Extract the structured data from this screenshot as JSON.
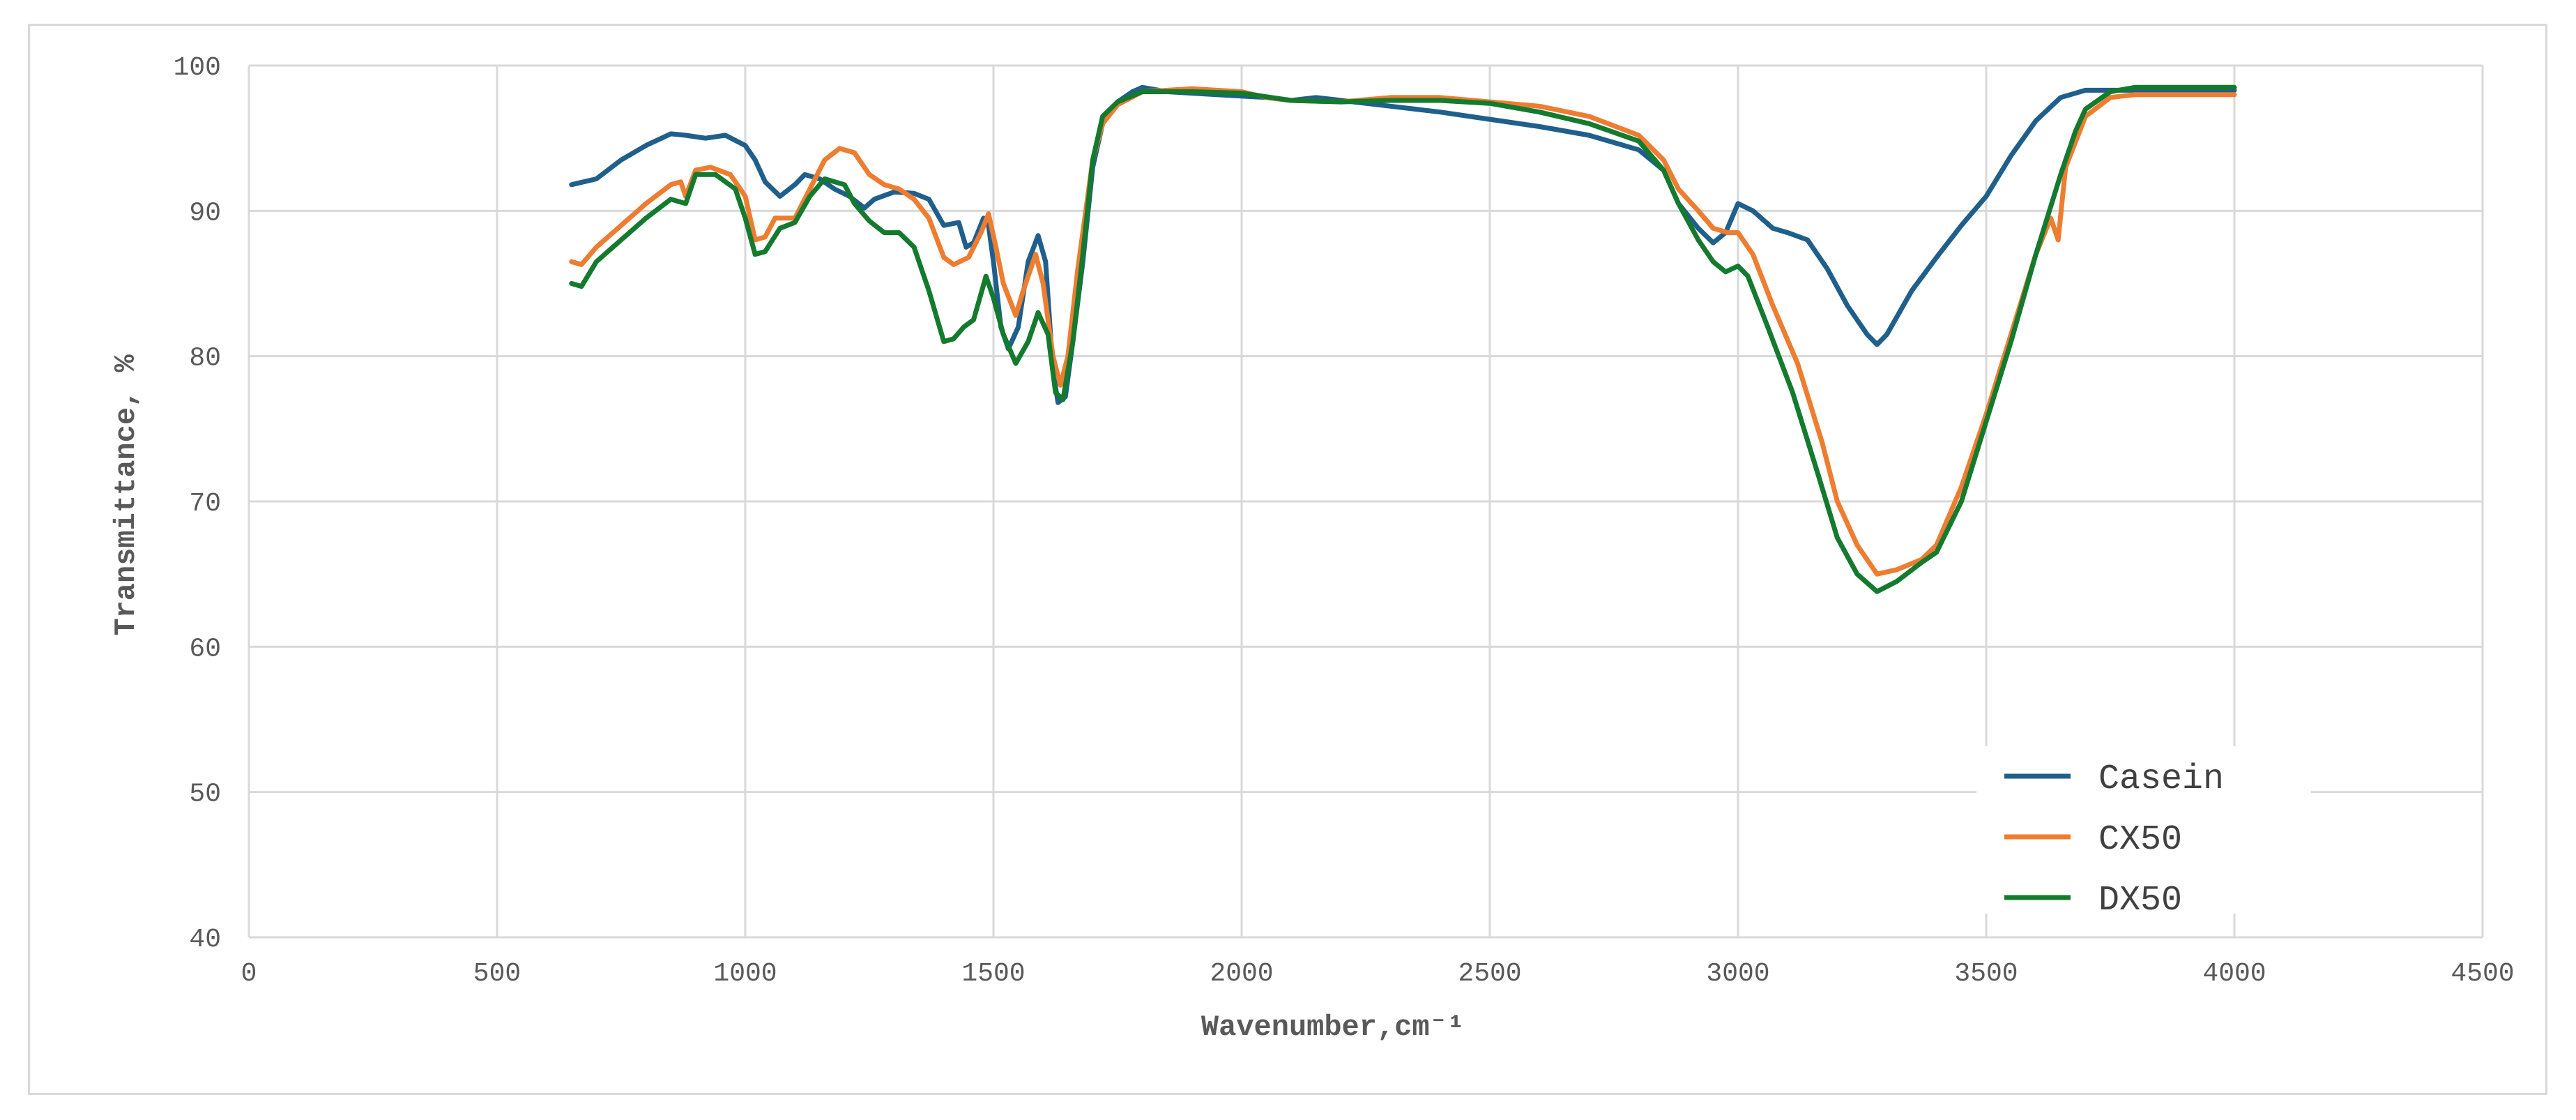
{
  "chart_data": {
    "type": "line",
    "title": "",
    "xlabel": "Wavenumber,cm⁻¹",
    "ylabel": "Transmittance, %",
    "xlim": [
      0,
      4500
    ],
    "ylim": [
      40,
      100
    ],
    "xticks": [
      0,
      500,
      1000,
      1500,
      2000,
      2500,
      3000,
      3500,
      4000,
      4500
    ],
    "yticks": [
      40,
      50,
      60,
      70,
      80,
      90,
      100
    ],
    "grid": true,
    "legend_position": "bottom-right",
    "series": [
      {
        "name": "Casein",
        "color": "#1f5f8b",
        "points": [
          [
            650,
            91.8
          ],
          [
            700,
            92.2
          ],
          [
            750,
            93.5
          ],
          [
            800,
            94.5
          ],
          [
            850,
            95.3
          ],
          [
            880,
            95.2
          ],
          [
            920,
            95.0
          ],
          [
            960,
            95.2
          ],
          [
            1000,
            94.5
          ],
          [
            1020,
            93.5
          ],
          [
            1040,
            92.0
          ],
          [
            1070,
            91.0
          ],
          [
            1100,
            91.8
          ],
          [
            1120,
            92.5
          ],
          [
            1150,
            92.2
          ],
          [
            1180,
            91.5
          ],
          [
            1210,
            91.0
          ],
          [
            1240,
            90.2
          ],
          [
            1260,
            90.8
          ],
          [
            1300,
            91.3
          ],
          [
            1340,
            91.2
          ],
          [
            1370,
            90.8
          ],
          [
            1400,
            89.0
          ],
          [
            1430,
            89.2
          ],
          [
            1445,
            87.5
          ],
          [
            1460,
            87.8
          ],
          [
            1480,
            89.5
          ],
          [
            1490,
            89.0
          ],
          [
            1500,
            86.5
          ],
          [
            1515,
            82.0
          ],
          [
            1530,
            80.5
          ],
          [
            1550,
            82.0
          ],
          [
            1570,
            86.5
          ],
          [
            1590,
            88.3
          ],
          [
            1605,
            86.5
          ],
          [
            1620,
            79.0
          ],
          [
            1630,
            76.8
          ],
          [
            1645,
            77.2
          ],
          [
            1660,
            81.0
          ],
          [
            1680,
            86.5
          ],
          [
            1700,
            93.0
          ],
          [
            1720,
            96.0
          ],
          [
            1750,
            97.5
          ],
          [
            1780,
            98.2
          ],
          [
            1800,
            98.5
          ],
          [
            1850,
            98.2
          ],
          [
            1950,
            98.0
          ],
          [
            2050,
            97.8
          ],
          [
            2100,
            97.6
          ],
          [
            2150,
            97.8
          ],
          [
            2200,
            97.6
          ],
          [
            2300,
            97.2
          ],
          [
            2400,
            96.8
          ],
          [
            2500,
            96.3
          ],
          [
            2600,
            95.8
          ],
          [
            2700,
            95.2
          ],
          [
            2800,
            94.2
          ],
          [
            2850,
            92.8
          ],
          [
            2880,
            90.5
          ],
          [
            2920,
            88.8
          ],
          [
            2950,
            87.8
          ],
          [
            2975,
            88.5
          ],
          [
            3000,
            90.5
          ],
          [
            3030,
            90.0
          ],
          [
            3070,
            88.8
          ],
          [
            3100,
            88.5
          ],
          [
            3140,
            88.0
          ],
          [
            3180,
            86.0
          ],
          [
            3220,
            83.5
          ],
          [
            3260,
            81.5
          ],
          [
            3280,
            80.8
          ],
          [
            3300,
            81.5
          ],
          [
            3350,
            84.5
          ],
          [
            3400,
            86.8
          ],
          [
            3450,
            89.0
          ],
          [
            3500,
            91.0
          ],
          [
            3550,
            93.8
          ],
          [
            3600,
            96.2
          ],
          [
            3650,
            97.8
          ],
          [
            3700,
            98.3
          ],
          [
            3800,
            98.3
          ],
          [
            3900,
            98.3
          ],
          [
            4000,
            98.3
          ]
        ]
      },
      {
        "name": "CX50",
        "color": "#ed7d31",
        "points": [
          [
            650,
            86.5
          ],
          [
            670,
            86.3
          ],
          [
            700,
            87.5
          ],
          [
            750,
            89.0
          ],
          [
            800,
            90.5
          ],
          [
            850,
            91.8
          ],
          [
            870,
            92.0
          ],
          [
            880,
            91.0
          ],
          [
            900,
            92.8
          ],
          [
            930,
            93.0
          ],
          [
            970,
            92.5
          ],
          [
            1000,
            91.0
          ],
          [
            1020,
            88.0
          ],
          [
            1040,
            88.2
          ],
          [
            1060,
            89.5
          ],
          [
            1100,
            89.5
          ],
          [
            1130,
            91.5
          ],
          [
            1160,
            93.5
          ],
          [
            1190,
            94.3
          ],
          [
            1220,
            94.0
          ],
          [
            1250,
            92.5
          ],
          [
            1280,
            91.8
          ],
          [
            1310,
            91.5
          ],
          [
            1340,
            90.8
          ],
          [
            1370,
            89.5
          ],
          [
            1400,
            86.8
          ],
          [
            1420,
            86.3
          ],
          [
            1450,
            86.8
          ],
          [
            1475,
            88.5
          ],
          [
            1490,
            89.8
          ],
          [
            1505,
            87.5
          ],
          [
            1520,
            85.0
          ],
          [
            1545,
            82.8
          ],
          [
            1560,
            84.5
          ],
          [
            1585,
            87.0
          ],
          [
            1600,
            85.0
          ],
          [
            1620,
            80.0
          ],
          [
            1635,
            78.0
          ],
          [
            1650,
            80.0
          ],
          [
            1670,
            86.0
          ],
          [
            1700,
            93.5
          ],
          [
            1720,
            96.0
          ],
          [
            1750,
            97.3
          ],
          [
            1800,
            98.2
          ],
          [
            1900,
            98.4
          ],
          [
            2000,
            98.2
          ],
          [
            2050,
            97.8
          ],
          [
            2100,
            97.6
          ],
          [
            2200,
            97.5
          ],
          [
            2300,
            97.8
          ],
          [
            2400,
            97.8
          ],
          [
            2500,
            97.5
          ],
          [
            2600,
            97.2
          ],
          [
            2700,
            96.5
          ],
          [
            2800,
            95.2
          ],
          [
            2850,
            93.5
          ],
          [
            2880,
            91.5
          ],
          [
            2920,
            90.0
          ],
          [
            2950,
            88.8
          ],
          [
            2980,
            88.5
          ],
          [
            3000,
            88.5
          ],
          [
            3030,
            87.0
          ],
          [
            3070,
            83.5
          ],
          [
            3120,
            79.5
          ],
          [
            3170,
            74.0
          ],
          [
            3200,
            70.0
          ],
          [
            3240,
            67.0
          ],
          [
            3280,
            65.0
          ],
          [
            3320,
            65.3
          ],
          [
            3370,
            66.0
          ],
          [
            3400,
            67.0
          ],
          [
            3450,
            71.0
          ],
          [
            3500,
            76.0
          ],
          [
            3550,
            81.5
          ],
          [
            3600,
            87.0
          ],
          [
            3630,
            89.5
          ],
          [
            3645,
            88.0
          ],
          [
            3660,
            93.0
          ],
          [
            3700,
            96.5
          ],
          [
            3750,
            97.8
          ],
          [
            3800,
            98.0
          ],
          [
            3900,
            98.0
          ],
          [
            4000,
            98.0
          ]
        ]
      },
      {
        "name": "DX50",
        "color": "#137a2e",
        "points": [
          [
            650,
            85.0
          ],
          [
            670,
            84.8
          ],
          [
            700,
            86.5
          ],
          [
            750,
            88.0
          ],
          [
            800,
            89.5
          ],
          [
            850,
            90.8
          ],
          [
            880,
            90.5
          ],
          [
            900,
            92.5
          ],
          [
            940,
            92.5
          ],
          [
            980,
            91.5
          ],
          [
            1000,
            89.5
          ],
          [
            1020,
            87.0
          ],
          [
            1040,
            87.2
          ],
          [
            1070,
            88.8
          ],
          [
            1100,
            89.2
          ],
          [
            1130,
            91.0
          ],
          [
            1160,
            92.2
          ],
          [
            1200,
            91.8
          ],
          [
            1220,
            90.5
          ],
          [
            1250,
            89.3
          ],
          [
            1280,
            88.5
          ],
          [
            1310,
            88.5
          ],
          [
            1340,
            87.5
          ],
          [
            1370,
            84.5
          ],
          [
            1400,
            81.0
          ],
          [
            1420,
            81.2
          ],
          [
            1440,
            82.0
          ],
          [
            1460,
            82.5
          ],
          [
            1485,
            85.5
          ],
          [
            1500,
            84.0
          ],
          [
            1520,
            81.5
          ],
          [
            1545,
            79.5
          ],
          [
            1570,
            81.0
          ],
          [
            1590,
            83.0
          ],
          [
            1610,
            81.5
          ],
          [
            1625,
            77.5
          ],
          [
            1640,
            77.0
          ],
          [
            1660,
            81.0
          ],
          [
            1680,
            87.0
          ],
          [
            1700,
            93.5
          ],
          [
            1720,
            96.5
          ],
          [
            1750,
            97.5
          ],
          [
            1800,
            98.2
          ],
          [
            1900,
            98.2
          ],
          [
            2000,
            98.1
          ],
          [
            2100,
            97.6
          ],
          [
            2200,
            97.5
          ],
          [
            2300,
            97.6
          ],
          [
            2400,
            97.6
          ],
          [
            2500,
            97.4
          ],
          [
            2600,
            96.8
          ],
          [
            2700,
            96.0
          ],
          [
            2800,
            94.8
          ],
          [
            2850,
            92.8
          ],
          [
            2880,
            90.5
          ],
          [
            2920,
            88.0
          ],
          [
            2950,
            86.5
          ],
          [
            2975,
            85.8
          ],
          [
            3000,
            86.2
          ],
          [
            3020,
            85.5
          ],
          [
            3060,
            82.0
          ],
          [
            3110,
            77.5
          ],
          [
            3160,
            72.0
          ],
          [
            3200,
            67.5
          ],
          [
            3240,
            65.0
          ],
          [
            3280,
            63.8
          ],
          [
            3320,
            64.5
          ],
          [
            3370,
            65.8
          ],
          [
            3400,
            66.5
          ],
          [
            3450,
            70.0
          ],
          [
            3500,
            75.5
          ],
          [
            3550,
            81.0
          ],
          [
            3600,
            87.0
          ],
          [
            3650,
            92.5
          ],
          [
            3680,
            95.5
          ],
          [
            3700,
            97.0
          ],
          [
            3750,
            98.2
          ],
          [
            3800,
            98.5
          ],
          [
            3900,
            98.5
          ],
          [
            4000,
            98.5
          ]
        ]
      }
    ]
  }
}
